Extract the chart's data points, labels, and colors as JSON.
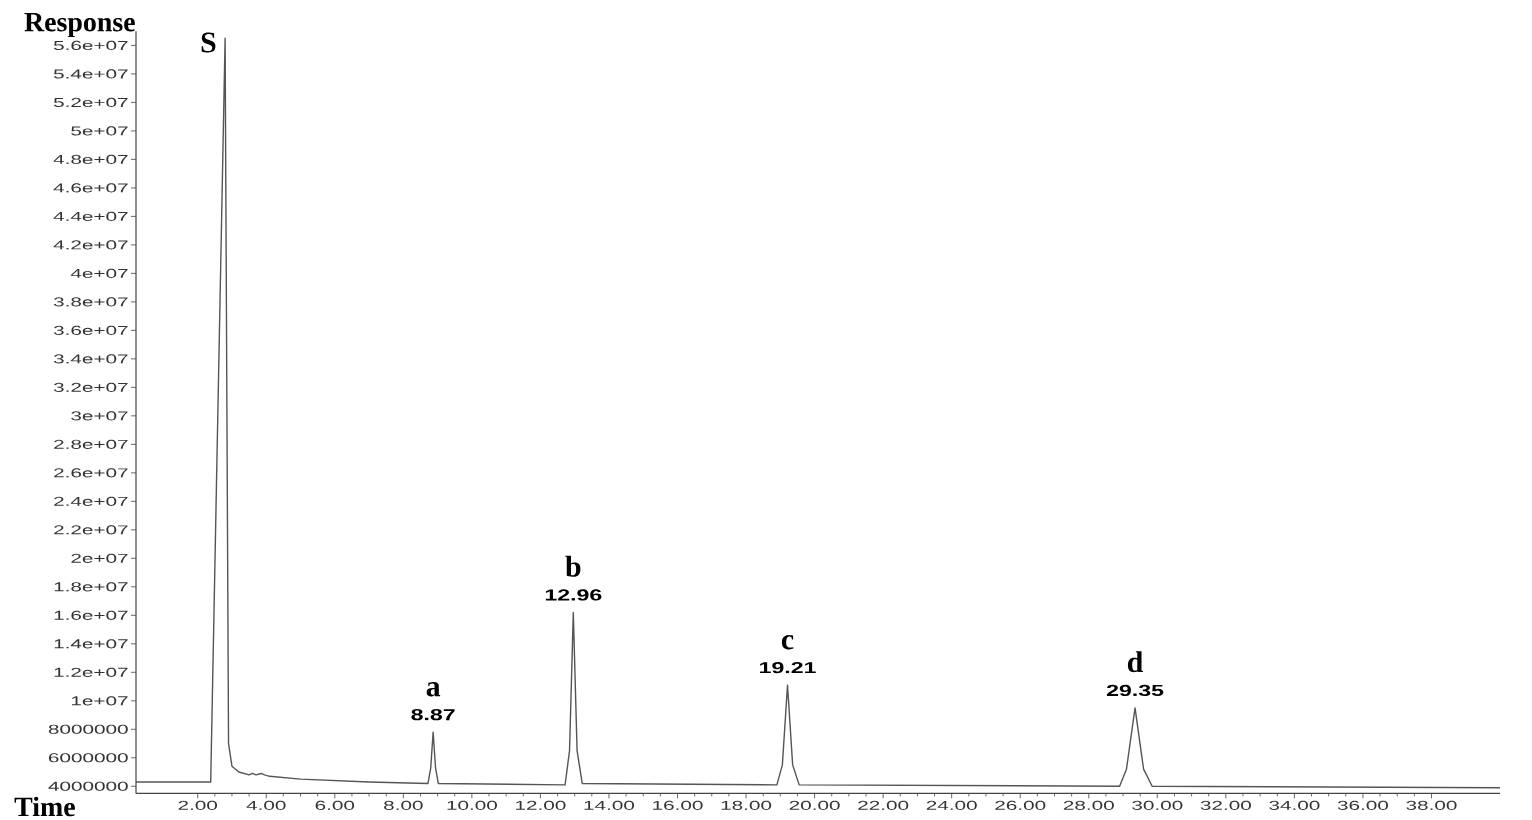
{
  "chart_data": {
    "type": "line",
    "xlabel": "Time",
    "ylabel": "Response",
    "x": [
      0.2,
      1.5,
      2.38,
      2.8,
      2.9,
      3.0,
      3.2,
      3.5,
      3.6,
      3.7,
      3.85,
      3.95,
      4.1,
      5.0,
      7.0,
      8.72,
      8.8,
      8.87,
      8.94,
      9.02,
      12.72,
      12.85,
      12.96,
      13.07,
      13.22,
      18.9,
      19.06,
      19.21,
      19.36,
      19.55,
      28.9,
      29.1,
      29.35,
      29.6,
      29.85,
      40.0
    ],
    "values": [
      4300000,
      4300000,
      4300000,
      56500000,
      7000000,
      5400000,
      5000000,
      4800000,
      4900000,
      4800000,
      4900000,
      4800000,
      4700000,
      4500000,
      4300000,
      4200000,
      5300000,
      7800000,
      5300000,
      4200000,
      4100000,
      6500000,
      16200000,
      6500000,
      4200000,
      4100000,
      5500000,
      11100000,
      5500000,
      4100000,
      4000000,
      5200000,
      9500000,
      5200000,
      4000000,
      3900000
    ],
    "color": "#555555",
    "marker": "none",
    "line_style": "solid",
    "xlim": [
      0.2,
      40
    ],
    "ylim": [
      3500000,
      57000000
    ],
    "xticks": [
      {
        "value": 2,
        "label": "2.00"
      },
      {
        "value": 4,
        "label": "4.00"
      },
      {
        "value": 6,
        "label": "6.00"
      },
      {
        "value": 8,
        "label": "8.00"
      },
      {
        "value": 10,
        "label": "10.00"
      },
      {
        "value": 12,
        "label": "12.00"
      },
      {
        "value": 14,
        "label": "14.00"
      },
      {
        "value": 16,
        "label": "16.00"
      },
      {
        "value": 18,
        "label": "18.00"
      },
      {
        "value": 20,
        "label": "20.00"
      },
      {
        "value": 22,
        "label": "22.00"
      },
      {
        "value": 24,
        "label": "24.00"
      },
      {
        "value": 26,
        "label": "26.00"
      },
      {
        "value": 28,
        "label": "28.00"
      },
      {
        "value": 30,
        "label": "30.00"
      },
      {
        "value": 32,
        "label": "32.00"
      },
      {
        "value": 34,
        "label": "34.00"
      },
      {
        "value": 36,
        "label": "36.00"
      },
      {
        "value": 38,
        "label": "38.00"
      }
    ],
    "yticks": [
      4000000,
      6000000,
      8000000,
      {
        "value": 10000000,
        "label": "1e+07"
      },
      {
        "value": 12000000,
        "label": "1.2e+07"
      },
      {
        "value": 14000000,
        "label": "1.4e+07"
      },
      {
        "value": 16000000,
        "label": "1.6e+07"
      },
      {
        "value": 18000000,
        "label": "1.8e+07"
      },
      {
        "value": 20000000,
        "label": "2e+07"
      },
      {
        "value": 22000000,
        "label": "2.2e+07"
      },
      {
        "value": 24000000,
        "label": "2.4e+07"
      },
      {
        "value": 26000000,
        "label": "2.6e+07"
      },
      {
        "value": 28000000,
        "label": "2.8e+07"
      },
      {
        "value": 30000000,
        "label": "3e+07"
      },
      {
        "value": 32000000,
        "label": "3.2e+07"
      },
      {
        "value": 34000000,
        "label": "3.4e+07"
      },
      {
        "value": 36000000,
        "label": "3.6e+07"
      },
      {
        "value": 38000000,
        "label": "3.8e+07"
      },
      {
        "value": 40000000,
        "label": "4e+07"
      },
      {
        "value": 42000000,
        "label": "4.2e+07"
      },
      {
        "value": 44000000,
        "label": "4.4e+07"
      },
      {
        "value": 46000000,
        "label": "4.6e+07"
      },
      {
        "value": 48000000,
        "label": "4.8e+07"
      },
      {
        "value": 50000000,
        "label": "5e+07"
      },
      {
        "value": 52000000,
        "label": "5.2e+07"
      },
      {
        "value": 54000000,
        "label": "5.4e+07"
      },
      {
        "value": 56000000,
        "label": "5.6e+07"
      }
    ],
    "annotations": [
      {
        "text": "S",
        "x": 2.8,
        "y": 56500000
      },
      {
        "text": "a",
        "x": 8.87,
        "y": 7800000
      },
      {
        "text": "8.87",
        "x": 8.87,
        "y": 7800000
      },
      {
        "text": "b",
        "x": 12.96,
        "y": 16200000
      },
      {
        "text": "12.96",
        "x": 12.96,
        "y": 16200000
      },
      {
        "text": "c",
        "x": 19.21,
        "y": 11100000
      },
      {
        "text": "19.21",
        "x": 19.21,
        "y": 11100000
      },
      {
        "text": "d",
        "x": 29.35,
        "y": 9500000
      },
      {
        "text": "29.35",
        "x": 29.35,
        "y": 9500000
      }
    ]
  }
}
